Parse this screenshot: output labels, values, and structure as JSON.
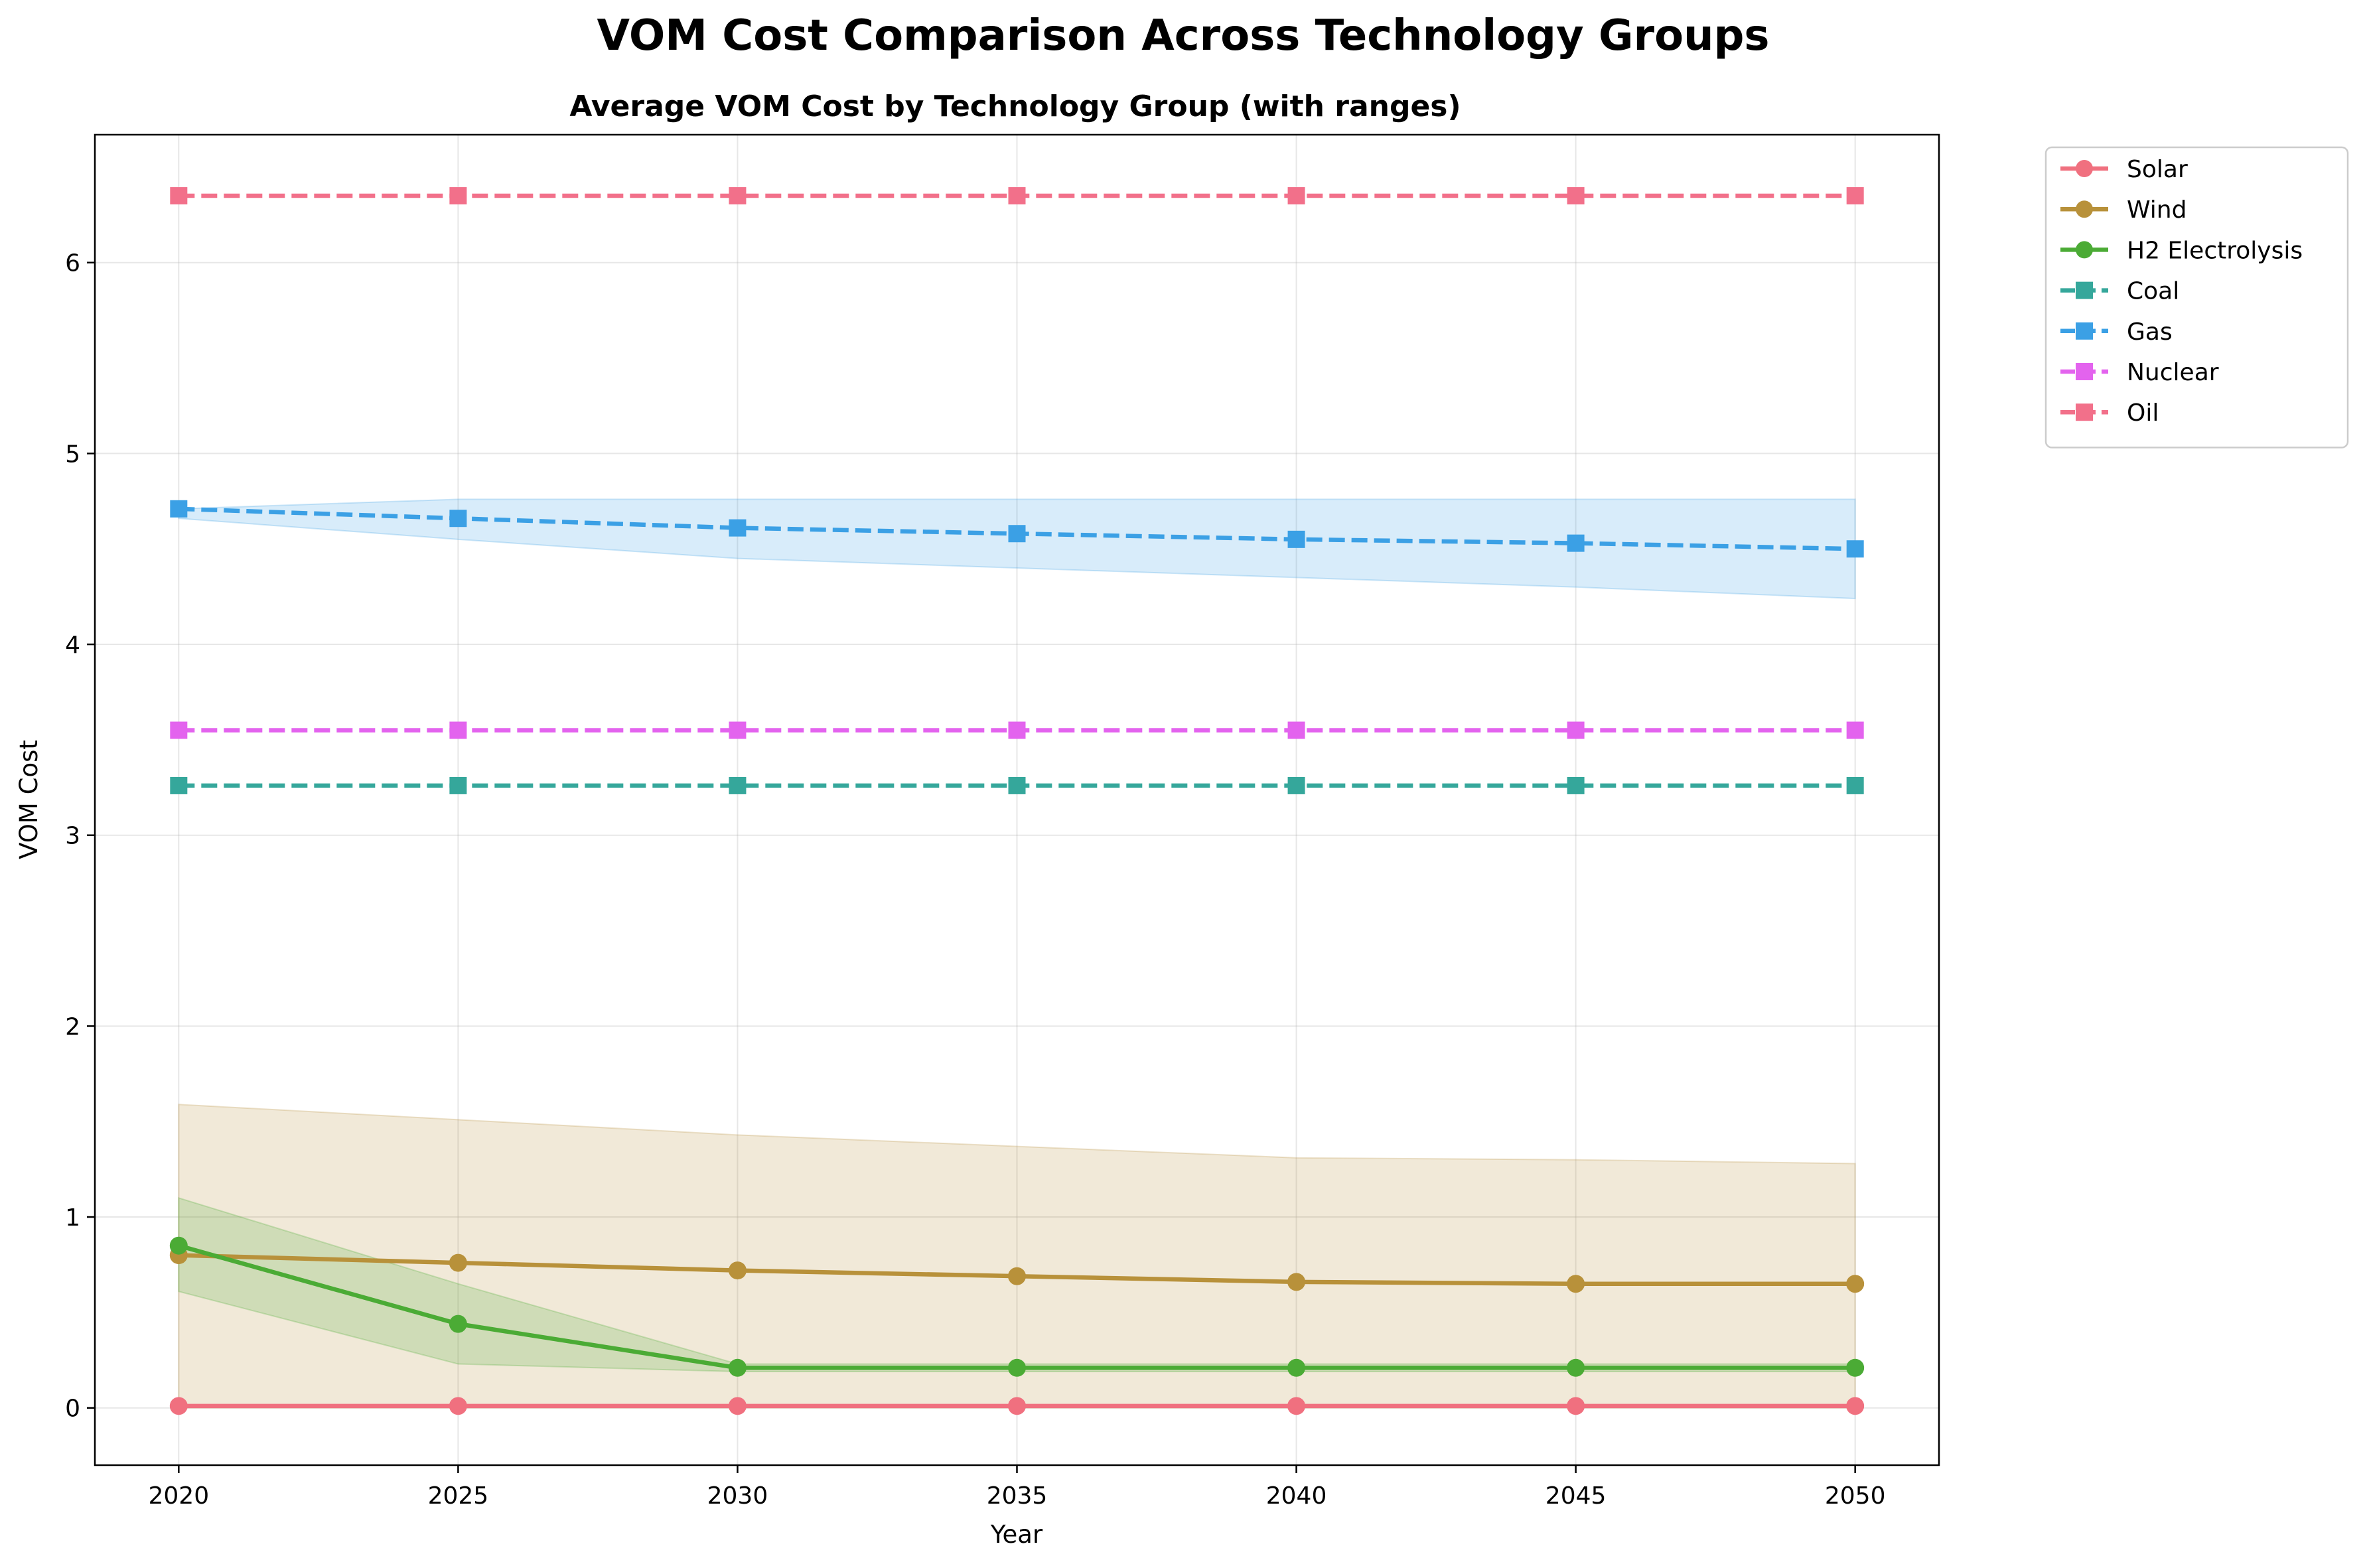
{
  "chart_data": {
    "type": "line",
    "suptitle": "VOM Cost Comparison Across Technology Groups",
    "title": "Average VOM Cost by Technology Group (with ranges)",
    "xlabel": "Year",
    "ylabel": "VOM Cost",
    "x": [
      2020,
      2025,
      2030,
      2035,
      2040,
      2045,
      2050
    ],
    "xticks": [
      "2020",
      "2025",
      "2030",
      "2035",
      "2040",
      "2045",
      "2050"
    ],
    "yticks": [
      "0",
      "1",
      "2",
      "3",
      "4",
      "5",
      "6"
    ],
    "ytick_values": [
      0,
      1,
      2,
      3,
      4,
      5,
      6
    ],
    "xlim": [
      2018.5,
      2051.5
    ],
    "ylim": [
      -0.3,
      6.67
    ],
    "grid": true,
    "legend_position": "outside-right",
    "series": [
      {
        "name": "Solar",
        "color": "#f0707f",
        "linestyle": "solid",
        "marker": "circle",
        "values": [
          0.01,
          0.01,
          0.01,
          0.01,
          0.01,
          0.01,
          0.01
        ]
      },
      {
        "name": "Wind",
        "color": "#b8913a",
        "linestyle": "solid",
        "marker": "circle",
        "values": [
          0.8,
          0.76,
          0.72,
          0.69,
          0.66,
          0.65,
          0.65
        ],
        "range_low": [
          0.0,
          0.0,
          0.0,
          0.0,
          0.0,
          0.0,
          0.0
        ],
        "range_high": [
          1.59,
          1.51,
          1.43,
          1.37,
          1.31,
          1.3,
          1.28
        ]
      },
      {
        "name": "H2 Electrolysis",
        "color": "#4bab35",
        "linestyle": "solid",
        "marker": "circle",
        "values": [
          0.85,
          0.44,
          0.21,
          0.21,
          0.21,
          0.21,
          0.21
        ],
        "range_low": [
          0.61,
          0.23,
          0.19,
          0.19,
          0.19,
          0.19,
          0.19
        ],
        "range_high": [
          1.1,
          0.65,
          0.23,
          0.23,
          0.23,
          0.23,
          0.23
        ]
      },
      {
        "name": "Coal",
        "color": "#35a79b",
        "linestyle": "dashed",
        "marker": "square",
        "values": [
          3.26,
          3.26,
          3.26,
          3.26,
          3.26,
          3.26,
          3.26
        ]
      },
      {
        "name": "Gas",
        "color": "#3ba0e5",
        "linestyle": "dashed",
        "marker": "square",
        "values": [
          4.71,
          4.66,
          4.61,
          4.58,
          4.55,
          4.53,
          4.5
        ],
        "range_low": [
          4.66,
          4.55,
          4.45,
          4.4,
          4.35,
          4.3,
          4.24
        ],
        "range_high": [
          4.71,
          4.76,
          4.76,
          4.76,
          4.76,
          4.76,
          4.76
        ]
      },
      {
        "name": "Nuclear",
        "color": "#e363ee",
        "linestyle": "dashed",
        "marker": "square",
        "values": [
          3.55,
          3.55,
          3.55,
          3.55,
          3.55,
          3.55,
          3.55
        ]
      },
      {
        "name": "Oil",
        "color": "#f2708a",
        "linestyle": "dashed",
        "marker": "square",
        "values": [
          6.35,
          6.35,
          6.35,
          6.35,
          6.35,
          6.35,
          6.35
        ]
      }
    ]
  }
}
